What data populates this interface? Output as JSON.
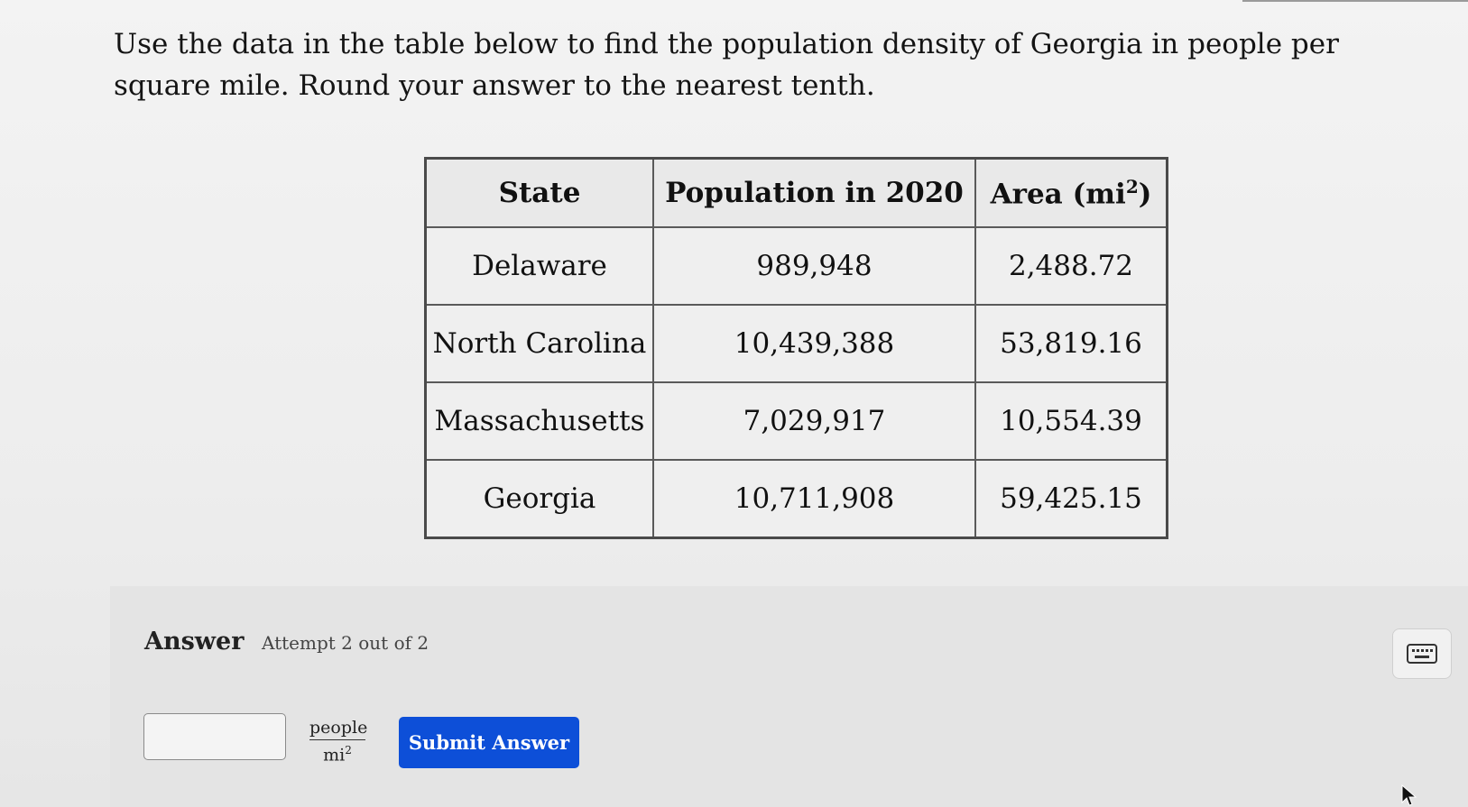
{
  "question": {
    "text": "Use the data in the table below to find the population density of Georgia in people per square mile. Round your answer to the nearest tenth."
  },
  "table": {
    "headers": {
      "state": "State",
      "population": "Population in 2020",
      "area_prefix": "Area (mi",
      "area_sup": "2",
      "area_suffix": ")"
    },
    "rows": [
      {
        "state": "Delaware",
        "population": "989,948",
        "area": "2,488.72"
      },
      {
        "state": "North Carolina",
        "population": "10,439,388",
        "area": "53,819.16"
      },
      {
        "state": "Massachusetts",
        "population": "7,029,917",
        "area": "10,554.39"
      },
      {
        "state": "Georgia",
        "population": "10,711,908",
        "area": "59,425.15"
      }
    ]
  },
  "answer": {
    "label": "Answer",
    "attempt": "Attempt 2 out of 2",
    "input_value": "",
    "unit_numerator": "people",
    "unit_denominator": "mi",
    "unit_denominator_exp": "2",
    "submit_label": "Submit Answer"
  },
  "icons": {
    "keyboard": "keyboard-icon",
    "cursor": "mouse-cursor-icon"
  },
  "colors": {
    "submit_bg": "#0d4fd8",
    "submit_text": "#ffffff"
  }
}
